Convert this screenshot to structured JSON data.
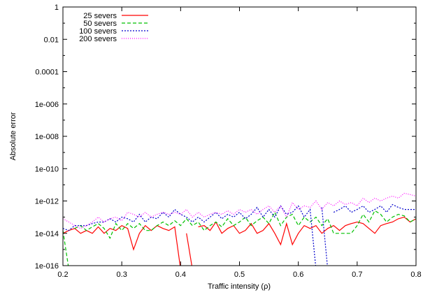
{
  "chart_data": {
    "type": "line",
    "title": "",
    "xlabel": "Traffic intensity (ρ)",
    "ylabel": "Absolute error",
    "xlim": [
      0.2,
      0.8
    ],
    "ylim": [
      1e-16,
      1
    ],
    "yscale": "log",
    "legend_position": "top-left",
    "grid": false,
    "x_ticks": [
      "0.2",
      "0.3",
      "0.4",
      "0.5",
      "0.6",
      "0.7",
      "0.8"
    ],
    "y_ticks": [
      "1e-016",
      "1e-014",
      "1e-012",
      "1e-010",
      "1e-008",
      "1e-006",
      "0.0001",
      "0.01",
      "1"
    ],
    "x": [
      0.2,
      0.21,
      0.22,
      0.23,
      0.24,
      0.25,
      0.26,
      0.27,
      0.28,
      0.29,
      0.3,
      0.31,
      0.32,
      0.33,
      0.34,
      0.35,
      0.36,
      0.37,
      0.38,
      0.39,
      0.4,
      0.41,
      0.42,
      0.43,
      0.44,
      0.45,
      0.46,
      0.47,
      0.48,
      0.49,
      0.5,
      0.51,
      0.52,
      0.53,
      0.54,
      0.55,
      0.56,
      0.57,
      0.58,
      0.59,
      0.6,
      0.61,
      0.62,
      0.63,
      0.64,
      0.65,
      0.66,
      0.67,
      0.68,
      0.69,
      0.7,
      0.71,
      0.72,
      0.73,
      0.74,
      0.75,
      0.76,
      0.77,
      0.78,
      0.79,
      0.8
    ],
    "series": [
      {
        "name": "25 severs",
        "color": "#ff0000",
        "dash": "solid",
        "values": [
          1e-14,
          1.5e-14,
          2e-14,
          1e-14,
          1.5e-14,
          1e-14,
          2.5e-14,
          1e-14,
          2e-14,
          1.5e-14,
          3e-14,
          2e-14,
          1e-15,
          1e-14,
          3e-14,
          1.5e-14,
          3e-14,
          2e-14,
          1.5e-14,
          2.5e-14,
          null,
          1e-14,
          null,
          2.5e-14,
          3e-14,
          1.5e-14,
          5e-14,
          1e-14,
          2e-14,
          3e-14,
          1e-14,
          1.5e-14,
          4e-14,
          1e-14,
          1.5e-14,
          4e-14,
          1e-14,
          2e-15,
          4e-14,
          2e-15,
          1e-14,
          3e-14,
          2e-14,
          3e-14,
          1e-14,
          2e-14,
          3e-14,
          1.5e-14,
          3e-14,
          4e-14,
          5e-14,
          4e-14,
          2e-14,
          1e-14,
          3e-14,
          4e-14,
          5e-14,
          8e-14,
          1e-13,
          5e-14,
          8e-14
        ]
      },
      {
        "name": "50 severs",
        "color": "#00c000",
        "dash": "5,3",
        "values": [
          1.5e-14,
          null,
          2e-14,
          3e-14,
          1.5e-14,
          2.5e-14,
          4e-14,
          2e-14,
          5e-15,
          4e-14,
          1.5e-14,
          4e-14,
          2e-14,
          4e-14,
          1.5e-14,
          1.5e-14,
          3e-14,
          5e-14,
          3e-14,
          6e-14,
          3e-14,
          8e-14,
          3e-14,
          5e-14,
          1.5e-14,
          3e-14,
          5e-14,
          2.5e-14,
          8e-14,
          3e-14,
          5e-14,
          1e-13,
          3e-14,
          6e-14,
          1e-13,
          4e-14,
          2e-13,
          3e-14,
          1e-13,
          1.5e-13,
          3e-14,
          1e-13,
          5e-14,
          1e-13,
          3e-14,
          8e-14,
          1e-14,
          1e-14,
          1e-14,
          1e-14,
          3e-14,
          1.5e-13,
          5e-14,
          2.5e-13,
          1.5e-13,
          5e-14,
          1e-13,
          1.5e-13,
          1.2e-13,
          5e-14,
          8e-14
        ]
      },
      {
        "name": "100 severs",
        "color": "#0000cc",
        "dash": "2,2",
        "values": [
          2e-14,
          1.5e-14,
          3e-14,
          3e-14,
          3e-14,
          4e-14,
          5e-14,
          5e-14,
          8e-14,
          5e-14,
          1e-13,
          8e-14,
          5e-14,
          1.5e-13,
          5e-14,
          1e-13,
          8e-14,
          2e-13,
          1e-13,
          3e-13,
          1.5e-13,
          1e-13,
          5e-14,
          1e-13,
          5e-14,
          1e-13,
          2e-13,
          8e-14,
          1.5e-13,
          1e-13,
          2e-13,
          8e-14,
          1.5e-13,
          4e-13,
          1e-13,
          3e-13,
          1e-13,
          5e-13,
          1.5e-13,
          2e-13,
          5e-13,
          1e-13,
          3e-13,
          null,
          4e-13,
          null,
          2e-13,
          3e-13,
          5e-13,
          2e-13,
          3e-13,
          5e-13,
          2e-13,
          3e-13,
          5e-13,
          2e-13,
          6e-13,
          4e-13,
          3e-13,
          3e-13,
          3e-13
        ]
      },
      {
        "name": "200 severs",
        "color": "#ff00ff",
        "dash": "1,2",
        "values": [
          8e-14,
          5e-14,
          3e-14,
          2e-14,
          3e-14,
          5e-14,
          1e-13,
          5e-14,
          8e-14,
          1e-13,
          6e-14,
          2e-13,
          1.5e-13,
          1e-13,
          2e-13,
          1e-13,
          1.5e-13,
          2e-13,
          1.5e-13,
          2e-13,
          1.5e-13,
          3e-13,
          1e-13,
          2e-13,
          1e-13,
          1.5e-13,
          2e-13,
          1.5e-13,
          2.5e-13,
          1.5e-13,
          3e-13,
          2e-13,
          3e-13,
          1.5e-13,
          3e-13,
          5e-13,
          2e-13,
          5e-13,
          1e-13,
          8e-13,
          3e-13,
          5e-13,
          4e-13,
          1e-12,
          3e-13,
          8e-13,
          5e-13,
          1e-12,
          6e-13,
          8e-13,
          5e-13,
          1.5e-12,
          8e-13,
          1.5e-12,
          1e-12,
          1.5e-12,
          2e-12,
          1.5e-12,
          3e-12,
          2.5e-12,
          2e-12
        ]
      }
    ]
  }
}
